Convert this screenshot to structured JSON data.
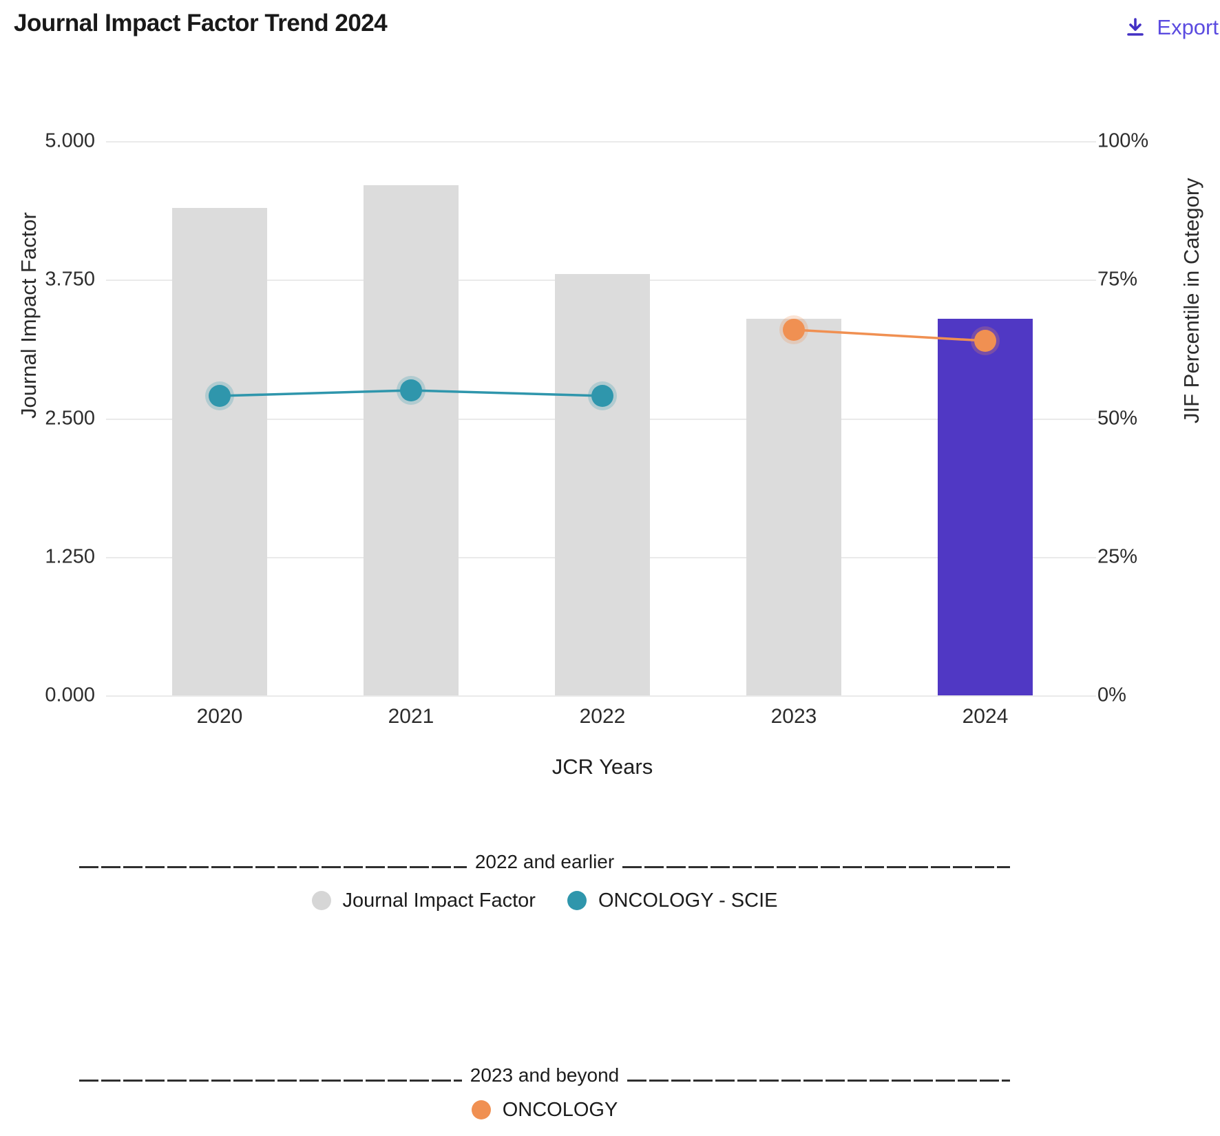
{
  "header": {
    "title": "Journal Impact Factor Trend 2024",
    "export": {
      "label": "Export",
      "icon_color": "#4330C4",
      "text_color": "#5B4BE0"
    }
  },
  "chart_data": {
    "type": "bar",
    "subtype": "dual-axis bar + line combo",
    "title": "Journal Impact Factor Trend 2024",
    "categories": [
      "2020",
      "2021",
      "2022",
      "2023",
      "2024"
    ],
    "series": [
      {
        "name": "Journal Impact Factor",
        "kind": "bar",
        "axis": "left",
        "values": [
          4.4,
          4.6,
          3.8,
          3.4,
          3.4
        ],
        "bar_colors": [
          "#DCDCDC",
          "#DCDCDC",
          "#DCDCDC",
          "#DCDCDC",
          "#5038C4"
        ]
      },
      {
        "name": "ONCOLOGY - SCIE",
        "kind": "line",
        "axis": "right",
        "years": [
          "2020",
          "2021",
          "2022"
        ],
        "values": [
          54,
          55,
          54
        ],
        "color": "#2F96AC"
      },
      {
        "name": "ONCOLOGY",
        "kind": "line",
        "axis": "right",
        "years": [
          "2023",
          "2024"
        ],
        "values": [
          66,
          64
        ],
        "color": "#F09052"
      }
    ],
    "xlabel": "JCR Years",
    "ylabel_left": "Journal Impact Factor",
    "ylabel_right": "JIF Percentile in Category",
    "ylim_left": [
      0,
      5
    ],
    "ylim_right": [
      0,
      100
    ],
    "yticks_left": [
      "5.000",
      "3.750",
      "2.500",
      "1.250",
      "0.000"
    ],
    "yticks_right": [
      "100%",
      "75%",
      "50%",
      "25%",
      "0%"
    ],
    "grid": true,
    "gridline_color": "#EAEAEA",
    "legend_position": "bottom"
  },
  "legend": {
    "sections": [
      {
        "divider_label": "2022 and earlier",
        "items": [
          {
            "label": "Journal Impact Factor",
            "color": "#D6D6D6"
          },
          {
            "label": "ONCOLOGY - SCIE",
            "color": "#2F96AC"
          }
        ]
      },
      {
        "divider_label": "2023 and beyond",
        "items": [
          {
            "label": "ONCOLOGY",
            "color": "#F09052"
          }
        ]
      }
    ]
  }
}
